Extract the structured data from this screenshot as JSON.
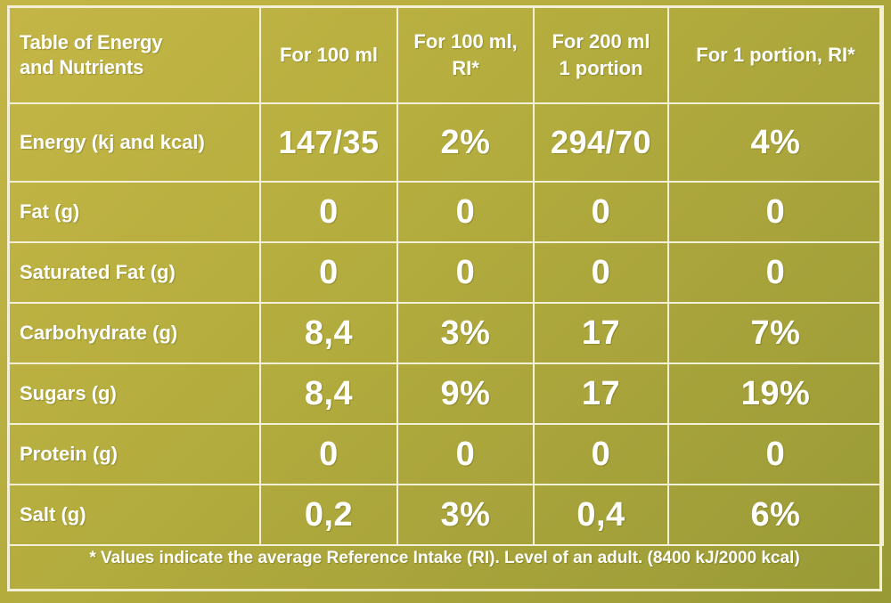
{
  "table": {
    "header": {
      "title_line1": "Table of Energy",
      "title_line2": "and Nutrients",
      "col1": "For 100 ml",
      "col2_line1": "For 100 ml,",
      "col2_line2": "RI*",
      "col3_line1": "For 200 ml",
      "col3_line2": "1 portion",
      "col4": "For 1 portion, RI*"
    },
    "rows": [
      {
        "label": "Energy (kj and kcal)",
        "per100": "147/35",
        "ri100": "2%",
        "per200": "294/70",
        "riPortion": "4%"
      },
      {
        "label": "Fat (g)",
        "per100": "0",
        "ri100": "0",
        "per200": "0",
        "riPortion": "0"
      },
      {
        "label": "Saturated Fat (g)",
        "per100": "0",
        "ri100": "0",
        "per200": "0",
        "riPortion": "0"
      },
      {
        "label": "Carbohydrate (g)",
        "per100": "8,4",
        "ri100": "3%",
        "per200": "17",
        "riPortion": "7%"
      },
      {
        "label": "Sugars (g)",
        "per100": "8,4",
        "ri100": "9%",
        "per200": "17",
        "riPortion": "19%"
      },
      {
        "label": "Protein (g)",
        "per100": "0",
        "ri100": "0",
        "per200": "0",
        "riPortion": "0"
      },
      {
        "label": "Salt (g)",
        "per100": "0,2",
        "ri100": "3%",
        "per200": "0,4",
        "riPortion": "6%"
      }
    ]
  },
  "footnote": "* Values indicate the average Reference Intake (RI). Level of an adult. (8400 kJ/2000 kcal)",
  "colors": {
    "background": "#b4ad3e",
    "lines": "#f4f0d8",
    "text": "#ffffff"
  }
}
